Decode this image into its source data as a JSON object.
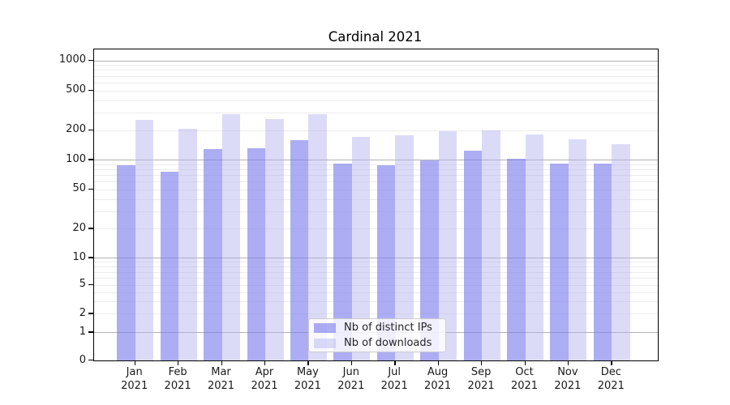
{
  "chart_data": {
    "type": "bar",
    "title": "Cardinal 2021",
    "categories": [
      "Jan 2021",
      "Feb 2021",
      "Mar 2021",
      "Apr 2021",
      "May 2021",
      "Jun 2021",
      "Jul 2021",
      "Aug 2021",
      "Sep 2021",
      "Oct 2021",
      "Nov 2021",
      "Dec 2021"
    ],
    "series": [
      {
        "name": "Nb of distinct IPs",
        "values": [
          88,
          76,
          129,
          131,
          160,
          92,
          88,
          98,
          123,
          102,
          92,
          91
        ]
      },
      {
        "name": "Nb of downloads",
        "values": [
          253,
          208,
          292,
          257,
          292,
          173,
          179,
          195,
          199,
          183,
          162,
          144
        ]
      }
    ],
    "xlabel": "",
    "ylabel": "",
    "yscale": "symlog",
    "yticks": [
      0,
      1,
      2,
      5,
      10,
      20,
      50,
      100,
      200,
      500,
      1000
    ],
    "ylim": [
      0,
      1300
    ],
    "grid": "major-and-minor",
    "legend_position": "lower center"
  },
  "colors": {
    "bar_distinct_ips": "rgba(122,122,237,0.62)",
    "bar_downloads": "rgba(175,175,240,0.45)",
    "grid_major": "#b3b3b3",
    "grid_minor": "#ececec",
    "axis_text": "#1a1a1a"
  }
}
